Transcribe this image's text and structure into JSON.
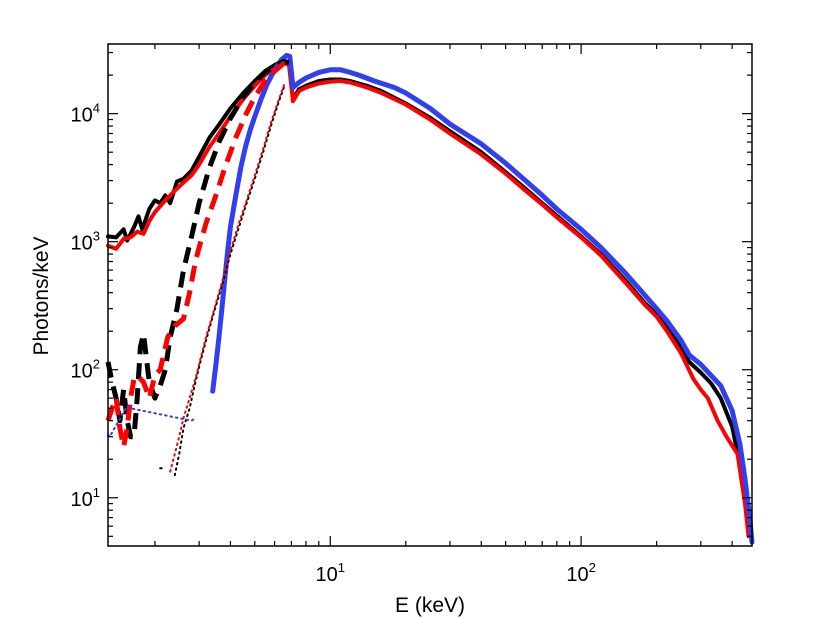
{
  "chart_data": {
    "type": "line",
    "title": "",
    "xlabel": "E (keV)",
    "ylabel": "Photons/keV",
    "xscale": "log",
    "yscale": "log",
    "xlim": [
      1.3,
      480
    ],
    "ylim": [
      4.2,
      35000
    ],
    "grid": false,
    "x_ticks": [
      {
        "base": "10",
        "exp": "1",
        "value": 10
      },
      {
        "base": "10",
        "exp": "2",
        "value": 100
      }
    ],
    "y_ticks": [
      {
        "base": "10",
        "exp": "1",
        "value": 10
      },
      {
        "base": "10",
        "exp": "2",
        "value": 100
      },
      {
        "base": "10",
        "exp": "3",
        "value": 1000
      },
      {
        "base": "10",
        "exp": "4",
        "value": 10000
      }
    ],
    "series": [
      {
        "name": "black solid",
        "color": "#000000",
        "style": "solid",
        "width": 4,
        "points": [
          [
            1.3,
            1100
          ],
          [
            1.4,
            1080
          ],
          [
            1.5,
            1250
          ],
          [
            1.55,
            1020
          ],
          [
            1.65,
            1300
          ],
          [
            1.72,
            1580
          ],
          [
            1.78,
            1250
          ],
          [
            1.9,
            1800
          ],
          [
            2.0,
            2100
          ],
          [
            2.1,
            2000
          ],
          [
            2.2,
            2300
          ],
          [
            2.3,
            2000
          ],
          [
            2.45,
            2950
          ],
          [
            2.6,
            3100
          ],
          [
            2.8,
            3600
          ],
          [
            3.0,
            4600
          ],
          [
            3.3,
            6500
          ],
          [
            3.6,
            8200
          ],
          [
            4.0,
            11000
          ],
          [
            4.5,
            14500
          ],
          [
            5.0,
            18000
          ],
          [
            5.5,
            21500
          ],
          [
            6.0,
            24000
          ],
          [
            6.5,
            26000
          ],
          [
            6.85,
            25000
          ],
          [
            7.1,
            13000
          ],
          [
            7.5,
            15500
          ],
          [
            8.0,
            16500
          ],
          [
            9.0,
            18000
          ],
          [
            10,
            18500
          ],
          [
            11,
            18500
          ],
          [
            12,
            18000
          ],
          [
            14,
            16500
          ],
          [
            16,
            15000
          ],
          [
            20,
            12000
          ],
          [
            25,
            9300
          ],
          [
            30,
            7300
          ],
          [
            40,
            5000
          ],
          [
            50,
            3500
          ],
          [
            60,
            2600
          ],
          [
            70,
            2000
          ],
          [
            80,
            1600
          ],
          [
            100,
            1100
          ],
          [
            120,
            800
          ],
          [
            150,
            500
          ],
          [
            180,
            330
          ],
          [
            200,
            270
          ],
          [
            220,
            220
          ],
          [
            250,
            150
          ],
          [
            270,
            115
          ],
          [
            300,
            95
          ],
          [
            330,
            78
          ],
          [
            360,
            60
          ],
          [
            400,
            36
          ],
          [
            430,
            18
          ],
          [
            455,
            8
          ],
          [
            465,
            5.5
          ]
        ]
      },
      {
        "name": "red solid",
        "color": "#ff0000",
        "style": "solid",
        "width": 4,
        "points": [
          [
            1.3,
            930
          ],
          [
            1.4,
            880
          ],
          [
            1.5,
            1050
          ],
          [
            1.6,
            1080
          ],
          [
            1.7,
            1200
          ],
          [
            1.8,
            1150
          ],
          [
            1.9,
            1450
          ],
          [
            2.0,
            1700
          ],
          [
            2.2,
            2100
          ],
          [
            2.4,
            2500
          ],
          [
            2.6,
            2900
          ],
          [
            2.8,
            3300
          ],
          [
            3.0,
            4000
          ],
          [
            3.3,
            5500
          ],
          [
            3.6,
            7000
          ],
          [
            4.0,
            9500
          ],
          [
            4.5,
            13000
          ],
          [
            5.0,
            16500
          ],
          [
            5.5,
            20000
          ],
          [
            6.0,
            22500
          ],
          [
            6.5,
            25000
          ],
          [
            6.85,
            24000
          ],
          [
            7.1,
            12500
          ],
          [
            7.5,
            15000
          ],
          [
            8.0,
            16000
          ],
          [
            9.0,
            17200
          ],
          [
            10,
            17800
          ],
          [
            11,
            18000
          ],
          [
            12,
            17500
          ],
          [
            14,
            16000
          ],
          [
            16,
            14500
          ],
          [
            20,
            11800
          ],
          [
            25,
            9000
          ],
          [
            30,
            7000
          ],
          [
            40,
            4800
          ],
          [
            50,
            3400
          ],
          [
            60,
            2500
          ],
          [
            70,
            1950
          ],
          [
            80,
            1550
          ],
          [
            100,
            1080
          ],
          [
            120,
            780
          ],
          [
            150,
            480
          ],
          [
            180,
            320
          ],
          [
            200,
            260
          ],
          [
            220,
            200
          ],
          [
            250,
            135
          ],
          [
            280,
            85
          ],
          [
            300,
            70
          ],
          [
            320,
            60
          ],
          [
            350,
            40
          ],
          [
            380,
            30
          ],
          [
            420,
            22
          ],
          [
            450,
            9
          ],
          [
            465,
            5
          ]
        ]
      },
      {
        "name": "blue solid",
        "color": "#3040f0",
        "style": "solid",
        "width": 5,
        "points": [
          [
            3.4,
            68
          ],
          [
            3.5,
            110
          ],
          [
            3.6,
            180
          ],
          [
            3.7,
            300
          ],
          [
            3.8,
            520
          ],
          [
            3.9,
            850
          ],
          [
            4.0,
            1300
          ],
          [
            4.2,
            2300
          ],
          [
            4.4,
            3800
          ],
          [
            4.6,
            5600
          ],
          [
            4.8,
            7500
          ],
          [
            5.0,
            9500
          ],
          [
            5.3,
            13000
          ],
          [
            5.6,
            17000
          ],
          [
            6.0,
            22000
          ],
          [
            6.4,
            26500
          ],
          [
            6.7,
            28500
          ],
          [
            6.9,
            28000
          ],
          [
            7.1,
            16000
          ],
          [
            7.5,
            17500
          ],
          [
            8,
            19000
          ],
          [
            9,
            21000
          ],
          [
            10,
            22000
          ],
          [
            11,
            22000
          ],
          [
            12,
            21000
          ],
          [
            13,
            20000
          ],
          [
            15,
            18000
          ],
          [
            18,
            16000
          ],
          [
            20,
            14500
          ],
          [
            25,
            11000
          ],
          [
            30,
            8300
          ],
          [
            40,
            5800
          ],
          [
            50,
            4100
          ],
          [
            60,
            3000
          ],
          [
            70,
            2300
          ],
          [
            80,
            1800
          ],
          [
            100,
            1250
          ],
          [
            120,
            900
          ],
          [
            150,
            570
          ],
          [
            180,
            380
          ],
          [
            200,
            300
          ],
          [
            220,
            240
          ],
          [
            250,
            170
          ],
          [
            270,
            130
          ],
          [
            300,
            110
          ],
          [
            330,
            90
          ],
          [
            360,
            75
          ],
          [
            400,
            48
          ],
          [
            430,
            26
          ],
          [
            450,
            14
          ],
          [
            470,
            7
          ],
          [
            480,
            4.5
          ]
        ]
      },
      {
        "name": "black dashed",
        "color": "#000000",
        "style": "dashed",
        "width": 5,
        "points": [
          [
            1.3,
            115
          ],
          [
            1.35,
            80
          ],
          [
            1.4,
            60
          ],
          [
            1.45,
            40
          ],
          [
            1.5,
            70
          ],
          [
            1.55,
            40
          ],
          [
            1.6,
            30
          ],
          [
            1.65,
            30
          ],
          [
            1.7,
            60
          ],
          [
            1.75,
            150
          ],
          [
            1.8,
            190
          ],
          [
            1.9,
            80
          ],
          [
            2.0,
            60
          ],
          [
            2.1,
            75
          ],
          [
            2.2,
            100
          ],
          [
            2.3,
            180
          ],
          [
            2.45,
            300
          ],
          [
            2.6,
            600
          ],
          [
            2.8,
            1100
          ],
          [
            3.0,
            2000
          ],
          [
            3.3,
            3800
          ],
          [
            3.6,
            6000
          ],
          [
            4.0,
            9200
          ],
          [
            4.5,
            13500
          ],
          [
            5.0,
            17500
          ],
          [
            5.5,
            21000
          ],
          [
            6.0,
            23500
          ],
          [
            6.5,
            25500
          ],
          [
            6.85,
            25000
          ]
        ]
      },
      {
        "name": "red dashed",
        "color": "#ff0000",
        "style": "dashed",
        "width": 5,
        "points": [
          [
            1.3,
            40
          ],
          [
            1.35,
            50
          ],
          [
            1.4,
            60
          ],
          [
            1.45,
            35
          ],
          [
            1.5,
            25
          ],
          [
            1.55,
            35
          ],
          [
            1.6,
            60
          ],
          [
            1.65,
            85
          ],
          [
            1.7,
            90
          ],
          [
            1.8,
            80
          ],
          [
            1.9,
            60
          ],
          [
            2.0,
            90
          ],
          [
            2.1,
            100
          ],
          [
            2.25,
            180
          ],
          [
            2.4,
            220
          ],
          [
            2.6,
            250
          ],
          [
            2.75,
            400
          ],
          [
            2.9,
            700
          ],
          [
            3.0,
            900
          ],
          [
            3.2,
            1400
          ],
          [
            3.5,
            2300
          ],
          [
            3.8,
            3800
          ],
          [
            4.2,
            6500
          ],
          [
            4.6,
            9800
          ],
          [
            5.0,
            13500
          ],
          [
            5.5,
            18000
          ],
          [
            6.0,
            21500
          ],
          [
            6.5,
            24500
          ],
          [
            6.85,
            24000
          ]
        ]
      },
      {
        "name": "black dotted",
        "color": "#000000",
        "style": "dotted",
        "width": 2,
        "points": [
          [
            2.4,
            15
          ],
          [
            2.5,
            22
          ],
          [
            2.6,
            35
          ],
          [
            2.75,
            50
          ],
          [
            2.9,
            80
          ],
          [
            3.05,
            120
          ],
          [
            3.2,
            170
          ],
          [
            3.4,
            260
          ],
          [
            3.6,
            380
          ],
          [
            3.8,
            550
          ],
          [
            4.0,
            800
          ],
          [
            4.3,
            1250
          ],
          [
            4.6,
            1900
          ],
          [
            5.0,
            3100
          ],
          [
            5.4,
            5000
          ],
          [
            5.8,
            8000
          ],
          [
            6.2,
            12000
          ],
          [
            6.6,
            17000
          ]
        ]
      },
      {
        "name": "red dotted",
        "color": "#ff0000",
        "style": "dotted",
        "width": 2,
        "points": [
          [
            2.3,
            16
          ],
          [
            2.4,
            22
          ],
          [
            2.5,
            30
          ],
          [
            2.6,
            42
          ],
          [
            2.75,
            60
          ],
          [
            2.9,
            85
          ],
          [
            3.05,
            125
          ],
          [
            3.2,
            180
          ],
          [
            3.4,
            270
          ],
          [
            3.6,
            400
          ],
          [
            3.8,
            580
          ],
          [
            4.0,
            850
          ],
          [
            4.3,
            1350
          ],
          [
            4.6,
            2000
          ],
          [
            5.0,
            3300
          ],
          [
            5.4,
            5300
          ],
          [
            5.8,
            8500
          ],
          [
            6.2,
            12500
          ],
          [
            6.6,
            17500
          ]
        ]
      },
      {
        "name": "blue points",
        "color": "#3040f0",
        "style": "dotted",
        "width": 2,
        "points": [
          [
            1.3,
            31
          ],
          [
            1.32,
            30
          ],
          [
            1.55,
            52
          ],
          [
            1.6,
            50
          ],
          [
            2.8,
            40
          ],
          [
            2.85,
            41
          ]
        ]
      },
      {
        "name": "black points",
        "color": "#000000",
        "style": "dotted",
        "width": 2,
        "points": [
          [
            2.1,
            17
          ],
          [
            2.15,
            17
          ]
        ]
      }
    ]
  }
}
